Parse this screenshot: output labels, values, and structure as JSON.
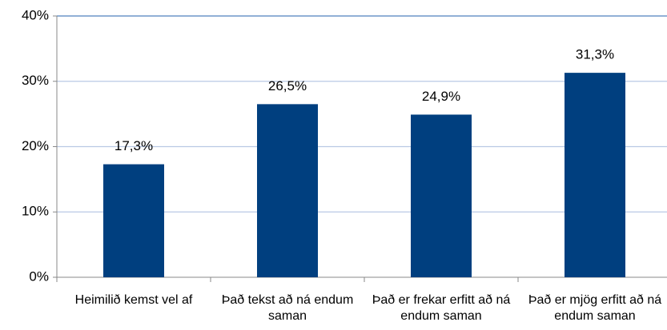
{
  "chart_data": {
    "type": "bar",
    "categories": [
      "Heimilið kemst vel af",
      "Það tekst að ná endum saman",
      "Það er frekar erfitt að ná endum saman",
      "Það er mjög erfitt að ná endum saman"
    ],
    "values": [
      17.3,
      26.5,
      24.9,
      31.3
    ],
    "value_labels": [
      "17,3%",
      "26,5%",
      "24,9%",
      "31,3%"
    ],
    "color": "#003f7f",
    "ylim": [
      0,
      40
    ],
    "yticks": [
      {
        "value": 0,
        "label": "0%"
      },
      {
        "value": 10,
        "label": "10%"
      },
      {
        "value": 20,
        "label": "20%"
      },
      {
        "value": 30,
        "label": "30%"
      },
      {
        "value": 40,
        "label": "40%"
      }
    ],
    "grid": true
  }
}
